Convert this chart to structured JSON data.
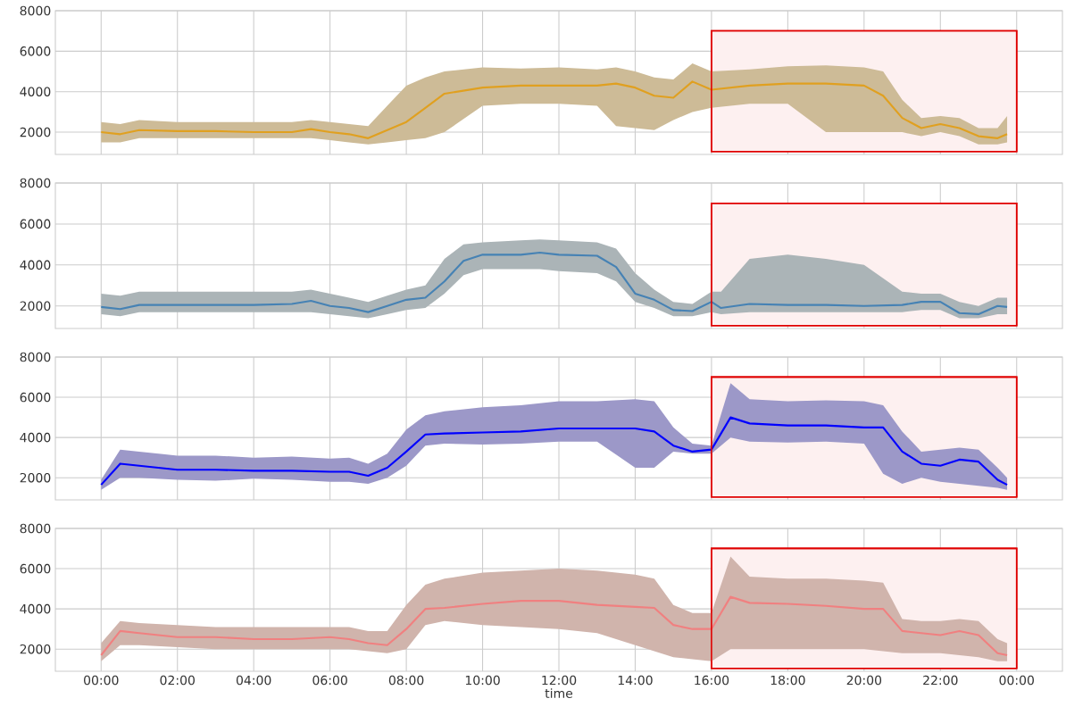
{
  "chart_data": [
    {
      "type": "line",
      "xlim": [
        -1.2,
        25.2
      ],
      "ylim": [
        900,
        8000
      ],
      "yticks": [
        2000,
        4000,
        6000,
        8000
      ],
      "xticks": [
        {
          "value": 0,
          "label": null
        },
        {
          "value": 2,
          "label": null
        },
        {
          "value": 4,
          "label": null
        },
        {
          "value": 6,
          "label": null
        },
        {
          "value": 8,
          "label": null
        },
        {
          "value": 10,
          "label": null
        },
        {
          "value": 12,
          "label": null
        },
        {
          "value": 14,
          "label": null
        },
        {
          "value": 16,
          "label": null
        },
        {
          "value": 18,
          "label": null
        },
        {
          "value": 20,
          "label": null
        },
        {
          "value": 22,
          "label": null
        },
        {
          "value": 24,
          "label": null
        }
      ],
      "tick_labels": "y",
      "grid": true,
      "marker": "none",
      "line_style": "solid",
      "bands": [
        {
          "axis": "x",
          "from": 16,
          "to": 24,
          "color": "#e00000"
        }
      ],
      "series": [
        {
          "color": "#e0a020",
          "x": [
            0,
            0.5,
            1,
            2,
            3,
            4,
            5,
            5.5,
            6,
            6.5,
            7,
            7.5,
            8,
            8.5,
            9,
            10,
            11,
            12,
            13,
            13.5,
            14,
            14.5,
            15,
            15.5,
            16,
            17,
            18,
            19,
            20,
            20.5,
            21,
            21.5,
            22,
            22.5,
            23,
            23.5,
            23.75
          ],
          "values": [
            2000,
            1900,
            2100,
            2050,
            2050,
            2000,
            2000,
            2150,
            2000,
            1900,
            1700,
            2100,
            2500,
            3200,
            3900,
            4200,
            4300,
            4300,
            4300,
            4400,
            4200,
            3800,
            3700,
            4500,
            4100,
            4300,
            4400,
            4400,
            4300,
            3800,
            2700,
            2200,
            2400,
            2200,
            1800,
            1700,
            1900
          ],
          "lower": [
            1500,
            1500,
            1700,
            1700,
            1700,
            1700,
            1700,
            1700,
            1600,
            1500,
            1400,
            1500,
            1600,
            1700,
            2000,
            3300,
            3400,
            3400,
            3300,
            2300,
            2200,
            2100,
            2600,
            3000,
            3200,
            3400,
            3400,
            2000,
            2000,
            2000,
            2000,
            1800,
            2000,
            1800,
            1400,
            1400,
            1500
          ],
          "upper": [
            2500,
            2400,
            2600,
            2500,
            2500,
            2500,
            2500,
            2600,
            2500,
            2400,
            2300,
            3300,
            4300,
            4700,
            5000,
            5200,
            5150,
            5200,
            5100,
            5200,
            5000,
            4700,
            4600,
            5400,
            5000,
            5100,
            5250,
            5300,
            5200,
            5000,
            3600,
            2700,
            2800,
            2700,
            2200,
            2200,
            2800
          ]
        }
      ]
    },
    {
      "type": "line",
      "xlim": [
        -1.2,
        25.2
      ],
      "ylim": [
        900,
        8000
      ],
      "yticks": [
        2000,
        4000,
        6000,
        8000
      ],
      "xticks": [
        {
          "value": 0,
          "label": null
        },
        {
          "value": 2,
          "label": null
        },
        {
          "value": 4,
          "label": null
        },
        {
          "value": 6,
          "label": null
        },
        {
          "value": 8,
          "label": null
        },
        {
          "value": 10,
          "label": null
        },
        {
          "value": 12,
          "label": null
        },
        {
          "value": 14,
          "label": null
        },
        {
          "value": 16,
          "label": null
        },
        {
          "value": 18,
          "label": null
        },
        {
          "value": 20,
          "label": null
        },
        {
          "value": 22,
          "label": null
        },
        {
          "value": 24,
          "label": null
        }
      ],
      "tick_labels": "y",
      "grid": true,
      "marker": "none",
      "line_style": "solid",
      "bands": [
        {
          "axis": "x",
          "from": 16,
          "to": 24,
          "color": "#e00000"
        }
      ],
      "series": [
        {
          "color": "#4682b4",
          "x": [
            0,
            0.5,
            1,
            2,
            3,
            4,
            5,
            5.5,
            6,
            6.5,
            7,
            7.5,
            8,
            8.5,
            9,
            9.5,
            10,
            11,
            11.5,
            12,
            13,
            13.5,
            14,
            14.5,
            15,
            15.5,
            16,
            16.25,
            17,
            18,
            19,
            20,
            21,
            21.5,
            22,
            22.5,
            23,
            23.5,
            23.75
          ],
          "values": [
            1950,
            1850,
            2050,
            2050,
            2050,
            2050,
            2100,
            2250,
            2000,
            1900,
            1700,
            2000,
            2300,
            2400,
            3200,
            4200,
            4500,
            4500,
            4600,
            4500,
            4450,
            3900,
            2600,
            2300,
            1800,
            1750,
            2200,
            1900,
            2100,
            2050,
            2050,
            2000,
            2050,
            2200,
            2200,
            1650,
            1600,
            2000,
            1950
          ],
          "lower": [
            1600,
            1500,
            1700,
            1700,
            1700,
            1700,
            1700,
            1700,
            1600,
            1500,
            1400,
            1600,
            1800,
            1900,
            2600,
            3500,
            3800,
            3800,
            3800,
            3700,
            3600,
            3200,
            2200,
            1900,
            1500,
            1500,
            1700,
            1600,
            1700,
            1700,
            1700,
            1700,
            1700,
            1800,
            1800,
            1400,
            1400,
            1600,
            1600
          ],
          "upper": [
            2600,
            2500,
            2700,
            2700,
            2700,
            2700,
            2700,
            2800,
            2600,
            2400,
            2200,
            2500,
            2800,
            3000,
            4300,
            5000,
            5100,
            5200,
            5250,
            5200,
            5100,
            4800,
            3600,
            2800,
            2200,
            2100,
            2700,
            2700,
            4300,
            4500,
            4300,
            4000,
            2700,
            2600,
            2600,
            2200,
            2000,
            2400,
            2400
          ]
        }
      ]
    },
    {
      "type": "line",
      "xlim": [
        -1.2,
        25.2
      ],
      "ylim": [
        900,
        8000
      ],
      "yticks": [
        2000,
        4000,
        6000,
        8000
      ],
      "xticks": [
        {
          "value": 0,
          "label": null
        },
        {
          "value": 2,
          "label": null
        },
        {
          "value": 4,
          "label": null
        },
        {
          "value": 6,
          "label": null
        },
        {
          "value": 8,
          "label": null
        },
        {
          "value": 10,
          "label": null
        },
        {
          "value": 12,
          "label": null
        },
        {
          "value": 14,
          "label": null
        },
        {
          "value": 16,
          "label": null
        },
        {
          "value": 18,
          "label": null
        },
        {
          "value": 20,
          "label": null
        },
        {
          "value": 22,
          "label": null
        },
        {
          "value": 24,
          "label": null
        }
      ],
      "tick_labels": "y",
      "grid": true,
      "marker": "none",
      "line_style": "solid",
      "bands": [
        {
          "axis": "x",
          "from": 16,
          "to": 24,
          "color": "#e00000"
        }
      ],
      "series": [
        {
          "color": "#0000ff",
          "x": [
            0,
            0.5,
            1,
            2,
            3,
            4,
            5,
            6,
            6.5,
            7,
            7.5,
            8,
            8.5,
            9,
            10,
            11,
            12,
            13,
            14,
            14.5,
            15,
            15.5,
            16,
            16.5,
            17,
            18,
            19,
            20,
            20.5,
            21,
            21.5,
            22,
            22.5,
            23,
            23.5,
            23.75
          ],
          "values": [
            1650,
            2700,
            2600,
            2400,
            2400,
            2350,
            2350,
            2300,
            2300,
            2100,
            2500,
            3300,
            4150,
            4200,
            4250,
            4300,
            4450,
            4450,
            4450,
            4300,
            3600,
            3300,
            3400,
            5000,
            4700,
            4600,
            4600,
            4500,
            4500,
            3300,
            2700,
            2600,
            2900,
            2800,
            1900,
            1650
          ],
          "lower": [
            1400,
            2000,
            2000,
            1900,
            1850,
            1950,
            1900,
            1800,
            1800,
            1700,
            2000,
            2600,
            3600,
            3700,
            3650,
            3700,
            3800,
            3800,
            2500,
            2500,
            3300,
            3200,
            3200,
            4000,
            3800,
            3750,
            3800,
            3700,
            2200,
            1700,
            2000,
            1800,
            1700,
            1600,
            1500,
            1400
          ],
          "upper": [
            1900,
            3400,
            3300,
            3100,
            3100,
            3000,
            3050,
            2950,
            3000,
            2700,
            3200,
            4400,
            5100,
            5300,
            5500,
            5600,
            5800,
            5800,
            5900,
            5800,
            4500,
            3700,
            3600,
            6700,
            5900,
            5800,
            5850,
            5800,
            5600,
            4300,
            3300,
            3400,
            3500,
            3400,
            2500,
            2000
          ]
        }
      ]
    },
    {
      "type": "line",
      "xlim": [
        -1.2,
        25.2
      ],
      "ylim": [
        900,
        8000
      ],
      "yticks": [
        2000,
        4000,
        6000,
        8000
      ],
      "xlabel": "time",
      "xticks": [
        {
          "value": 0,
          "label": "00:00"
        },
        {
          "value": 2,
          "label": "02:00"
        },
        {
          "value": 4,
          "label": "04:00"
        },
        {
          "value": 6,
          "label": "06:00"
        },
        {
          "value": 8,
          "label": "08:00"
        },
        {
          "value": 10,
          "label": "10:00"
        },
        {
          "value": 12,
          "label": "12:00"
        },
        {
          "value": 14,
          "label": "14:00"
        },
        {
          "value": 16,
          "label": "16:00"
        },
        {
          "value": 18,
          "label": "18:00"
        },
        {
          "value": 20,
          "label": "20:00"
        },
        {
          "value": 22,
          "label": "22:00"
        },
        {
          "value": 24,
          "label": "00:00"
        }
      ],
      "grid": true,
      "marker": "none",
      "line_style": "solid",
      "bands": [
        {
          "axis": "x",
          "from": 16,
          "to": 24,
          "color": "#e00000"
        }
      ],
      "series": [
        {
          "color": "#f08080",
          "x": [
            0,
            0.5,
            1,
            2,
            3,
            4,
            5,
            6,
            6.5,
            7,
            7.5,
            8,
            8.5,
            9,
            10,
            11,
            12,
            13,
            14,
            14.5,
            15,
            15.5,
            16,
            16.5,
            17,
            18,
            19,
            20,
            20.5,
            21,
            21.5,
            22,
            22.5,
            23,
            23.5,
            23.75
          ],
          "values": [
            1700,
            2900,
            2800,
            2600,
            2600,
            2500,
            2500,
            2600,
            2500,
            2300,
            2200,
            3000,
            4000,
            4050,
            4250,
            4400,
            4400,
            4200,
            4100,
            4050,
            3200,
            3000,
            3000,
            4600,
            4300,
            4250,
            4150,
            4000,
            4000,
            2900,
            2800,
            2700,
            2900,
            2700,
            1800,
            1700
          ],
          "lower": [
            1400,
            2200,
            2200,
            2100,
            2000,
            2000,
            2000,
            2000,
            2000,
            1900,
            1800,
            2000,
            3200,
            3400,
            3200,
            3100,
            3000,
            2800,
            2200,
            1900,
            1600,
            1500,
            1400,
            2000,
            2000,
            2000,
            2000,
            2000,
            1900,
            1800,
            1800,
            1800,
            1700,
            1600,
            1400,
            1400
          ],
          "upper": [
            2300,
            3400,
            3300,
            3200,
            3100,
            3100,
            3100,
            3100,
            3100,
            2900,
            2900,
            4200,
            5200,
            5500,
            5800,
            5900,
            6000,
            5900,
            5700,
            5500,
            4200,
            3800,
            3800,
            6600,
            5600,
            5500,
            5500,
            5400,
            5300,
            3500,
            3400,
            3400,
            3500,
            3400,
            2500,
            2300
          ]
        }
      ]
    }
  ]
}
